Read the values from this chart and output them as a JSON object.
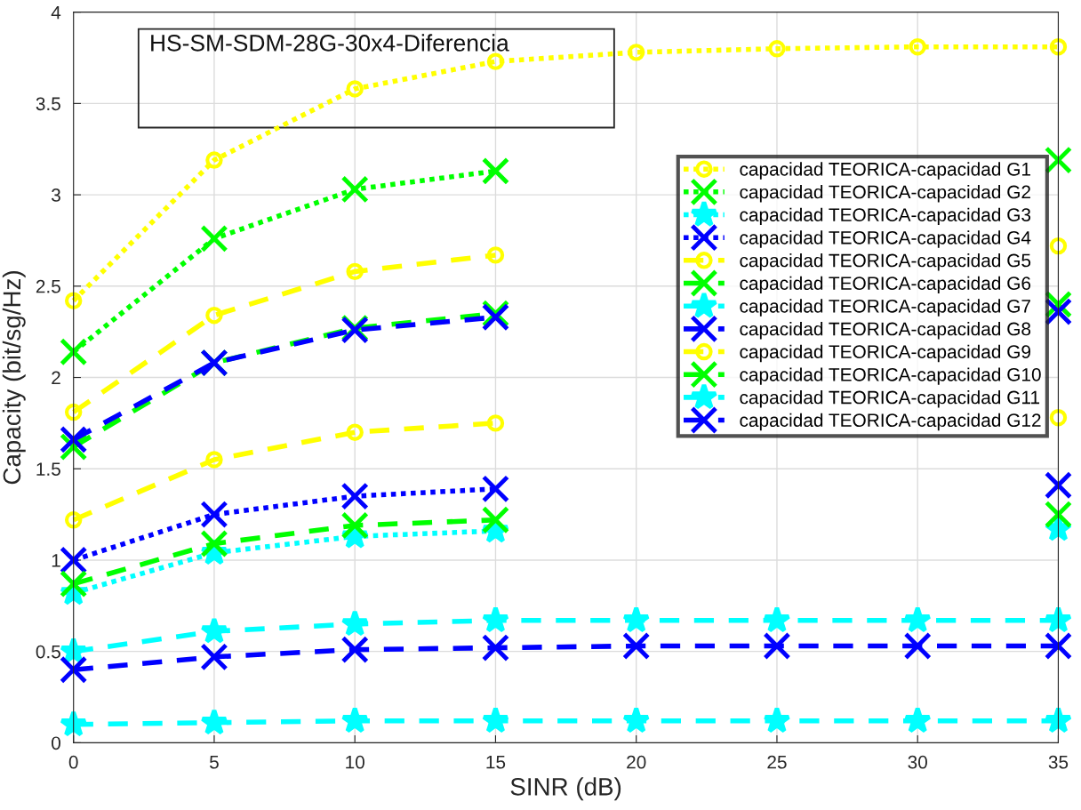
{
  "chart_data": {
    "type": "line",
    "xlabel": "SINR (dB)",
    "ylabel": "Capacity (bit/sg/Hz)",
    "annotations": [
      "HS-SM-SDM-28G-30x4-Diferencia"
    ],
    "x": [
      0,
      5,
      10,
      15,
      20,
      25,
      30,
      35
    ],
    "xlim": [
      0,
      35
    ],
    "xticks": [
      0,
      5,
      10,
      15,
      20,
      25,
      30,
      35
    ],
    "ylim": [
      0,
      4
    ],
    "yticks": [
      0,
      0.5,
      1,
      1.5,
      2,
      2.5,
      3,
      3.5,
      4
    ],
    "grid": true,
    "legend": "right",
    "series": [
      {
        "name": "capacidad TEORICA-capacidad G1",
        "color": "#ffff00",
        "marker": "circle",
        "line_style": "dotted",
        "values": [
          2.42,
          3.19,
          3.58,
          3.73,
          3.78,
          3.8,
          3.81,
          3.81
        ]
      },
      {
        "name": "capacidad TEORICA-capacidad G2",
        "color": "#00ff00",
        "marker": "cross",
        "line_style": "dotted",
        "values": [
          2.14,
          2.76,
          3.03,
          3.13,
          null,
          null,
          null,
          3.19
        ]
      },
      {
        "name": "capacidad TEORICA-capacidad G3",
        "color": "#00ffff",
        "marker": "star",
        "line_style": "dotted",
        "values": [
          0.82,
          1.04,
          1.13,
          1.16,
          null,
          null,
          null,
          1.17
        ]
      },
      {
        "name": "capacidad TEORICA-capacidad G4",
        "color": "#0000ff",
        "marker": "cross",
        "line_style": "dotted",
        "values": [
          1.0,
          1.25,
          1.35,
          1.39,
          null,
          null,
          null,
          1.41
        ]
      },
      {
        "name": "capacidad TEORICA-capacidad G5",
        "color": "#ffff00",
        "marker": "circle",
        "line_style": "dashed",
        "values": [
          1.81,
          2.34,
          2.58,
          2.67,
          null,
          null,
          null,
          2.72
        ]
      },
      {
        "name": "capacidad TEORICA-capacidad G6",
        "color": "#00ff00",
        "marker": "cross",
        "line_style": "dashed",
        "values": [
          1.62,
          2.08,
          2.27,
          2.35,
          null,
          null,
          null,
          2.4
        ]
      },
      {
        "name": "capacidad TEORICA-capacidad G7",
        "color": "#00ffff",
        "marker": "star",
        "line_style": "dashed",
        "values": [
          0.5,
          0.61,
          0.65,
          0.67,
          0.67,
          0.67,
          0.67,
          0.67
        ]
      },
      {
        "name": "capacidad TEORICA-capacidad G8",
        "color": "#0000ff",
        "marker": "cross",
        "line_style": "dashed",
        "values": [
          1.66,
          2.08,
          2.26,
          2.33,
          null,
          null,
          null,
          2.36
        ]
      },
      {
        "name": "capacidad TEORICA-capacidad G9",
        "color": "#ffff00",
        "marker": "circle",
        "line_style": "dashed",
        "values": [
          1.22,
          1.55,
          1.7,
          1.75,
          null,
          null,
          null,
          1.78
        ]
      },
      {
        "name": "capacidad TEORICA-capacidad G10",
        "color": "#00ff00",
        "marker": "cross",
        "line_style": "dashed",
        "values": [
          0.87,
          1.09,
          1.19,
          1.22,
          null,
          null,
          null,
          1.25
        ]
      },
      {
        "name": "capacidad TEORICA-capacidad G11",
        "color": "#00ffff",
        "marker": "star",
        "line_style": "dashed",
        "values": [
          0.1,
          0.11,
          0.12,
          0.12,
          0.12,
          0.12,
          0.12,
          0.12
        ]
      },
      {
        "name": "capacidad TEORICA-capacidad G12",
        "color": "#0000ff",
        "marker": "cross",
        "line_style": "dashed",
        "values": [
          0.4,
          0.47,
          0.51,
          0.52,
          0.53,
          0.53,
          0.53,
          0.53
        ]
      }
    ]
  }
}
